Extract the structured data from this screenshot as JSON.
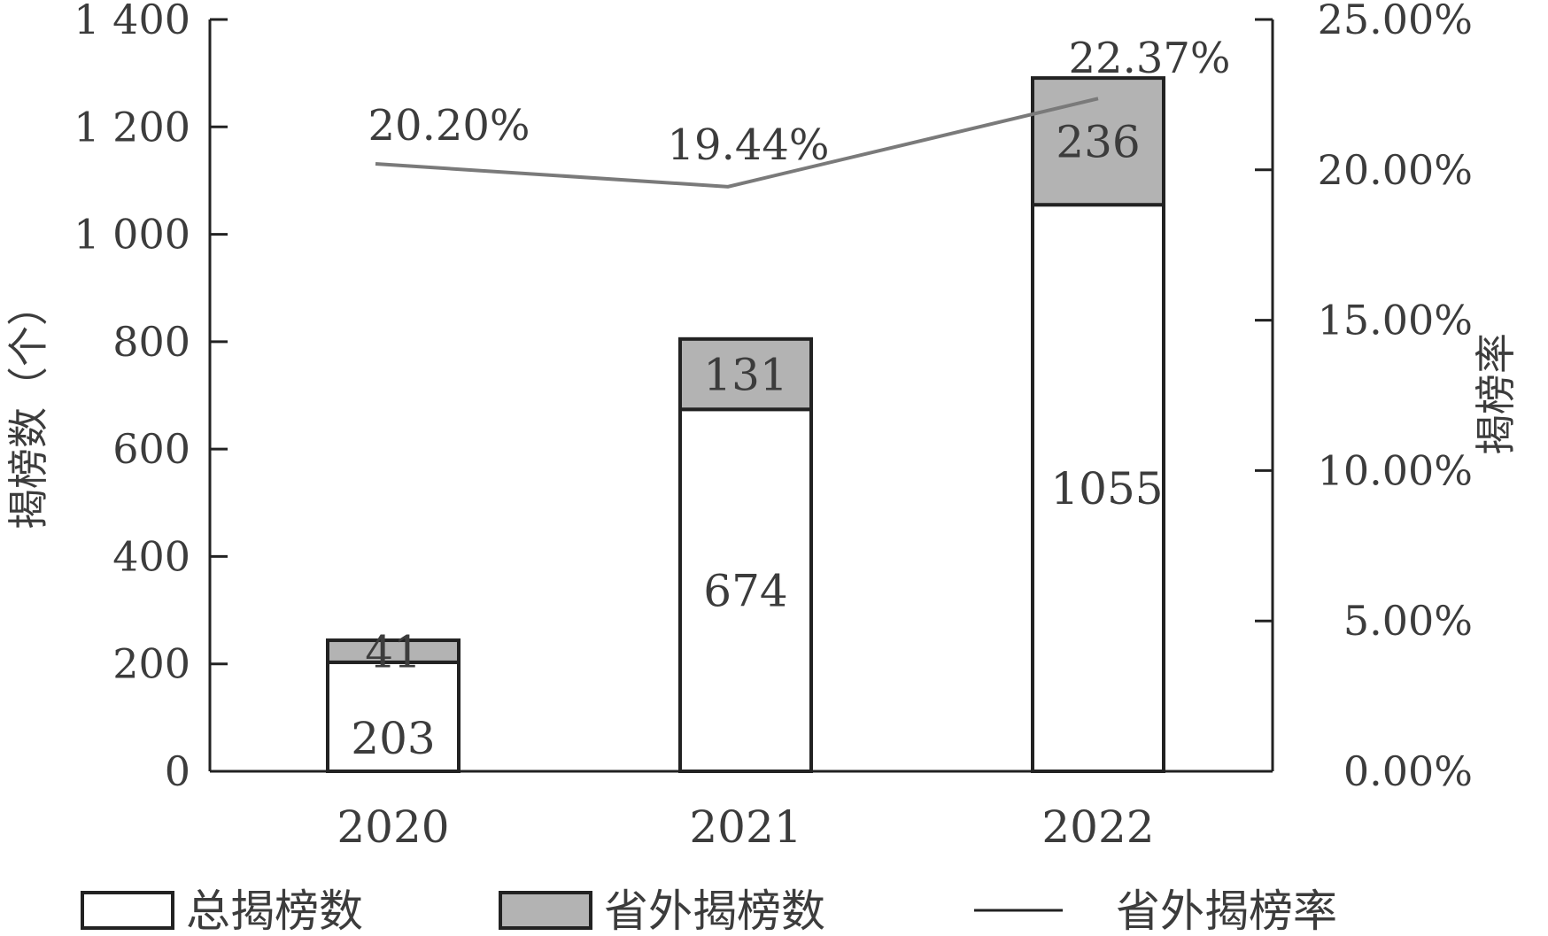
{
  "chart_data": {
    "type": "bar",
    "stacked": true,
    "categories": [
      "2020",
      "2021",
      "2022"
    ],
    "series": [
      {
        "name": "总揭榜数",
        "values": [
          203,
          674,
          1055
        ],
        "color": "#ffffff"
      },
      {
        "name": "省外揭榜数",
        "values": [
          41,
          131,
          236
        ],
        "color": "#b3b3b3"
      },
      {
        "name": "省外揭榜率",
        "values": [
          20.2,
          19.44,
          22.37
        ],
        "type": "line",
        "axis": "right",
        "color": "#7a7a7a"
      }
    ],
    "bar_labels": {
      "total": [
        "203",
        "674",
        "1055"
      ],
      "outside": [
        "41",
        "131",
        "236"
      ],
      "rate": [
        "20.20%",
        "19.44%",
        "22.37%"
      ]
    },
    "ylabel": "揭榜数（个）",
    "y2label": "揭榜率",
    "ylim": [
      0,
      1400
    ],
    "y2lim": [
      0,
      25
    ],
    "yticks": [
      "0",
      "200",
      "400",
      "600",
      "800",
      "1 000",
      "1 200",
      "1 400"
    ],
    "y2ticks": [
      "0.00%",
      "5.00%",
      "10.00%",
      "15.00%",
      "20.00%",
      "25.00%"
    ],
    "grid": false,
    "legend_position": "bottom"
  }
}
